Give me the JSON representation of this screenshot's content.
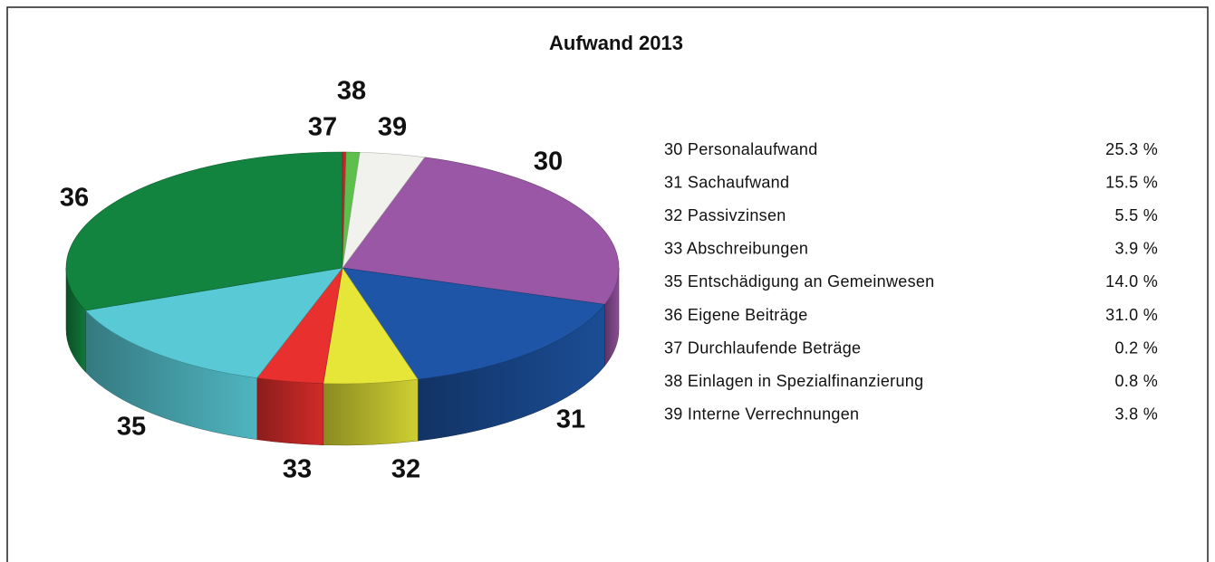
{
  "chart_data": {
    "type": "pie3d",
    "title": "Aufwand 2013",
    "categories": [
      "30 Personalaufwand",
      "31 Sachaufwand",
      "32 Passivzinsen",
      "33 Abschreibungen",
      "35 Entschädigung an Gemeinwesen",
      "36 Eigene Beiträge",
      "37 Durchlaufende Beträge",
      "38 Einlagen in Spezialfinanzierung",
      "39 Interne Verrechnungen"
    ],
    "slice_labels": [
      "30",
      "31",
      "32",
      "33",
      "35",
      "36",
      "37",
      "38",
      "39"
    ],
    "values": [
      25.3,
      15.5,
      5.5,
      3.9,
      14.0,
      31.0,
      0.2,
      0.8,
      3.8
    ],
    "value_labels": [
      "25.3 %",
      "15.5 %",
      "5.5 %",
      "3.9 %",
      "14.0 %",
      "31.0 %",
      "0.2 %",
      "0.8 %",
      "3.8 %"
    ],
    "colors": [
      "#9a57a5",
      "#1e55a6",
      "#e6e638",
      "#e8302e",
      "#58c9d5",
      "#12843f",
      "#c3262c",
      "#5cc04b",
      "#f1f1ee"
    ]
  }
}
